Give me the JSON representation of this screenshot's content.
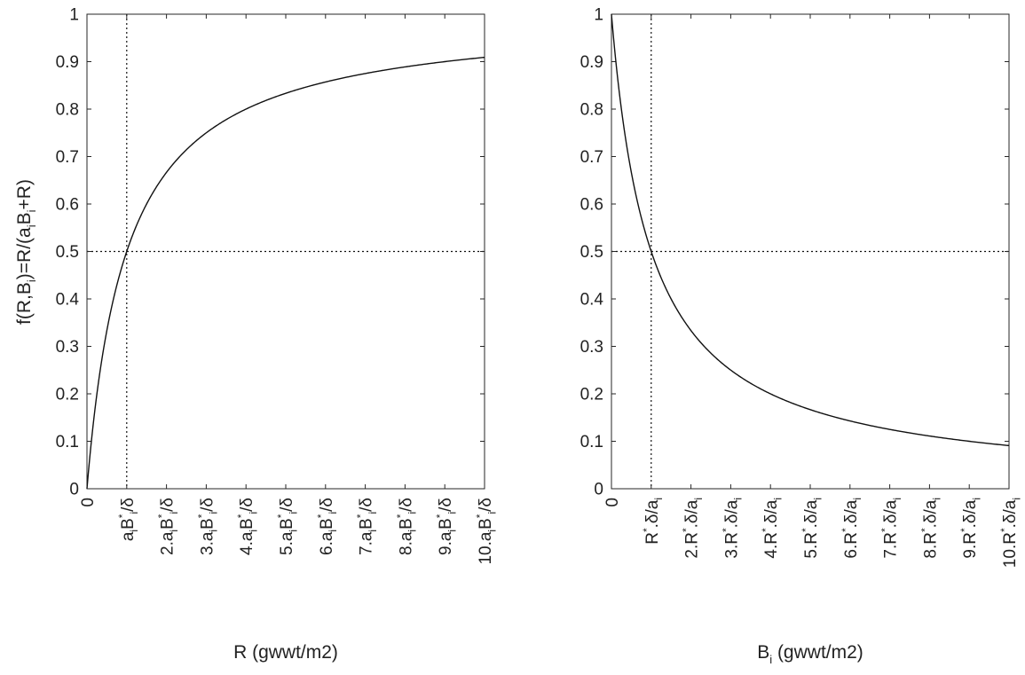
{
  "chart_data": [
    {
      "type": "line",
      "title": "",
      "xlabel": "R (gwwt/m2)",
      "ylabel": "f(R,B_i)=R/(a_iB_i+R)",
      "xlim": [
        0,
        10
      ],
      "ylim": [
        0,
        1
      ],
      "grid": false,
      "x_unit_note": "x in multiples of a_iB_i*/δ",
      "function": "x/(1+x)",
      "xticks": [
        0,
        1,
        2,
        3,
        4,
        5,
        6,
        7,
        8,
        9,
        10
      ],
      "xtick_labels": [
        [
          {
            "t": "0"
          }
        ],
        [
          {
            "t": "a"
          },
          {
            "t": "i",
            "s": "sub"
          },
          {
            "t": "B"
          },
          {
            "t": "*",
            "s": "sup"
          },
          {
            "t": "i",
            "s": "sub"
          },
          {
            "t": "/δ"
          }
        ],
        [
          {
            "t": "2.a"
          },
          {
            "t": "i",
            "s": "sub"
          },
          {
            "t": "B"
          },
          {
            "t": "*",
            "s": "sup"
          },
          {
            "t": "i",
            "s": "sub"
          },
          {
            "t": "/δ"
          }
        ],
        [
          {
            "t": "3.a"
          },
          {
            "t": "i",
            "s": "sub"
          },
          {
            "t": "B"
          },
          {
            "t": "*",
            "s": "sup"
          },
          {
            "t": "i",
            "s": "sub"
          },
          {
            "t": "/δ"
          }
        ],
        [
          {
            "t": "4.a"
          },
          {
            "t": "i",
            "s": "sub"
          },
          {
            "t": "B"
          },
          {
            "t": "*",
            "s": "sup"
          },
          {
            "t": "i",
            "s": "sub"
          },
          {
            "t": "/δ"
          }
        ],
        [
          {
            "t": "5.a"
          },
          {
            "t": "i",
            "s": "sub"
          },
          {
            "t": "B"
          },
          {
            "t": "*",
            "s": "sup"
          },
          {
            "t": "i",
            "s": "sub"
          },
          {
            "t": "/δ"
          }
        ],
        [
          {
            "t": "6.a"
          },
          {
            "t": "i",
            "s": "sub"
          },
          {
            "t": "B"
          },
          {
            "t": "*",
            "s": "sup"
          },
          {
            "t": "i",
            "s": "sub"
          },
          {
            "t": "/δ"
          }
        ],
        [
          {
            "t": "7.a"
          },
          {
            "t": "i",
            "s": "sub"
          },
          {
            "t": "B"
          },
          {
            "t": "*",
            "s": "sup"
          },
          {
            "t": "i",
            "s": "sub"
          },
          {
            "t": "/δ"
          }
        ],
        [
          {
            "t": "8.a"
          },
          {
            "t": "i",
            "s": "sub"
          },
          {
            "t": "B"
          },
          {
            "t": "*",
            "s": "sup"
          },
          {
            "t": "i",
            "s": "sub"
          },
          {
            "t": "/δ"
          }
        ],
        [
          {
            "t": "9.a"
          },
          {
            "t": "i",
            "s": "sub"
          },
          {
            "t": "B"
          },
          {
            "t": "*",
            "s": "sup"
          },
          {
            "t": "i",
            "s": "sub"
          },
          {
            "t": "/δ"
          }
        ],
        [
          {
            "t": "10.a"
          },
          {
            "t": "i",
            "s": "sub"
          },
          {
            "t": "B"
          },
          {
            "t": "*",
            "s": "sup"
          },
          {
            "t": "i",
            "s": "sub"
          },
          {
            "t": "/δ"
          }
        ]
      ],
      "yticks": [
        0,
        0.1,
        0.2,
        0.3,
        0.4,
        0.5,
        0.6,
        0.7,
        0.8,
        0.9,
        1
      ],
      "ytick_labels": [
        "0",
        "0.1",
        "0.2",
        "0.3",
        "0.4",
        "0.5",
        "0.6",
        "0.7",
        "0.8",
        "0.9",
        "1"
      ],
      "xlabel_parts": [
        {
          "t": "R (gwwt/m2)"
        }
      ],
      "ylabel_parts": [
        {
          "t": "f(R,B"
        },
        {
          "t": "i",
          "s": "sub"
        },
        {
          "t": ")=R/(a"
        },
        {
          "t": "i",
          "s": "sub"
        },
        {
          "t": "B"
        },
        {
          "t": "i",
          "s": "sub"
        },
        {
          "t": "+R)"
        }
      ],
      "reference_lines": [
        {
          "orientation": "vertical",
          "value": 1,
          "style": "dotted"
        },
        {
          "orientation": "horizontal",
          "value": 0.5,
          "style": "dotted"
        }
      ],
      "series": [
        {
          "points": [
            [
              0,
              0
            ],
            [
              0.05,
              0.0476
            ],
            [
              0.1,
              0.0909
            ],
            [
              0.2,
              0.1667
            ],
            [
              0.3,
              0.2308
            ],
            [
              0.5,
              0.3333
            ],
            [
              0.75,
              0.4286
            ],
            [
              1,
              0.5
            ],
            [
              1.5,
              0.6
            ],
            [
              2,
              0.6667
            ],
            [
              3,
              0.75
            ],
            [
              4,
              0.8
            ],
            [
              5,
              0.8333
            ],
            [
              6,
              0.8571
            ],
            [
              7,
              0.875
            ],
            [
              8,
              0.8889
            ],
            [
              9,
              0.9
            ],
            [
              10,
              0.9091
            ]
          ]
        }
      ]
    },
    {
      "type": "line",
      "title": "",
      "xlabel": "B_i (gwwt/m2)",
      "ylabel": "",
      "xlim": [
        0,
        10
      ],
      "ylim": [
        0,
        1
      ],
      "grid": false,
      "x_unit_note": "x in multiples of R*.δ/a_i",
      "function": "1/(1+x)",
      "xticks": [
        0,
        1,
        2,
        3,
        4,
        5,
        6,
        7,
        8,
        9,
        10
      ],
      "xtick_labels": [
        [
          {
            "t": "0"
          }
        ],
        [
          {
            "t": "R"
          },
          {
            "t": "*",
            "s": "sup"
          },
          {
            "t": ".δ/a"
          },
          {
            "t": "i",
            "s": "sub"
          }
        ],
        [
          {
            "t": "2.R"
          },
          {
            "t": "*",
            "s": "sup"
          },
          {
            "t": ".δ/a"
          },
          {
            "t": "i",
            "s": "sub"
          }
        ],
        [
          {
            "t": "3.R"
          },
          {
            "t": "*",
            "s": "sup"
          },
          {
            "t": ".δ/a"
          },
          {
            "t": "i",
            "s": "sub"
          }
        ],
        [
          {
            "t": "4.R"
          },
          {
            "t": "*",
            "s": "sup"
          },
          {
            "t": ".δ/a"
          },
          {
            "t": "i",
            "s": "sub"
          }
        ],
        [
          {
            "t": "5.R"
          },
          {
            "t": "*",
            "s": "sup"
          },
          {
            "t": ".δ/a"
          },
          {
            "t": "i",
            "s": "sub"
          }
        ],
        [
          {
            "t": "6.R"
          },
          {
            "t": "*",
            "s": "sup"
          },
          {
            "t": ".δ/a"
          },
          {
            "t": "i",
            "s": "sub"
          }
        ],
        [
          {
            "t": "7.R"
          },
          {
            "t": "*",
            "s": "sup"
          },
          {
            "t": ".δ/a"
          },
          {
            "t": "i",
            "s": "sub"
          }
        ],
        [
          {
            "t": "8.R"
          },
          {
            "t": "*",
            "s": "sup"
          },
          {
            "t": ".δ/a"
          },
          {
            "t": "i",
            "s": "sub"
          }
        ],
        [
          {
            "t": "9.R"
          },
          {
            "t": "*",
            "s": "sup"
          },
          {
            "t": ".δ/a"
          },
          {
            "t": "i",
            "s": "sub"
          }
        ],
        [
          {
            "t": "10.R"
          },
          {
            "t": "*",
            "s": "sup"
          },
          {
            "t": ".δ/a"
          },
          {
            "t": "i",
            "s": "sub"
          }
        ]
      ],
      "yticks": [
        0,
        0.1,
        0.2,
        0.3,
        0.4,
        0.5,
        0.6,
        0.7,
        0.8,
        0.9,
        1
      ],
      "ytick_labels": [
        "0",
        "0.1",
        "0.2",
        "0.3",
        "0.4",
        "0.5",
        "0.6",
        "0.7",
        "0.8",
        "0.9",
        "1"
      ],
      "xlabel_parts": [
        {
          "t": "B"
        },
        {
          "t": "i",
          "s": "sub"
        },
        {
          "t": "  (gwwt/m2)"
        }
      ],
      "ylabel_parts": [],
      "reference_lines": [
        {
          "orientation": "vertical",
          "value": 1,
          "style": "dotted"
        },
        {
          "orientation": "horizontal",
          "value": 0.5,
          "style": "dotted"
        }
      ],
      "series": [
        {
          "points": [
            [
              0,
              1
            ],
            [
              0.05,
              0.9524
            ],
            [
              0.1,
              0.9091
            ],
            [
              0.2,
              0.8333
            ],
            [
              0.3,
              0.7692
            ],
            [
              0.5,
              0.6667
            ],
            [
              0.75,
              0.5714
            ],
            [
              1,
              0.5
            ],
            [
              1.5,
              0.4
            ],
            [
              2,
              0.3333
            ],
            [
              3,
              0.25
            ],
            [
              4,
              0.2
            ],
            [
              5,
              0.1667
            ],
            [
              6,
              0.1429
            ],
            [
              7,
              0.125
            ],
            [
              8,
              0.1111
            ],
            [
              9,
              0.1
            ],
            [
              10,
              0.0909
            ]
          ]
        }
      ]
    }
  ]
}
